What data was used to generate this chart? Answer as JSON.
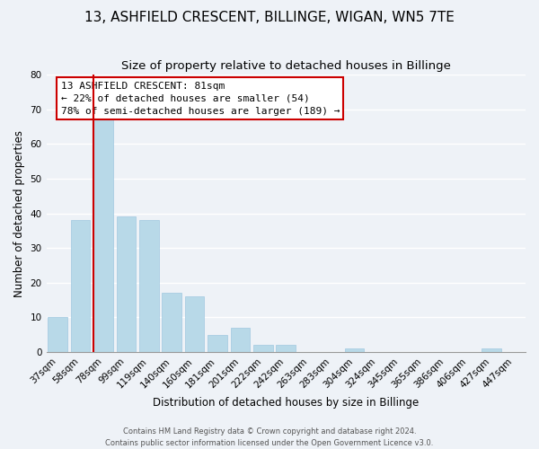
{
  "title": "13, ASHFIELD CRESCENT, BILLINGE, WIGAN, WN5 7TE",
  "subtitle": "Size of property relative to detached houses in Billinge",
  "xlabel": "Distribution of detached houses by size in Billinge",
  "ylabel": "Number of detached properties",
  "categories": [
    "37sqm",
    "58sqm",
    "78sqm",
    "99sqm",
    "119sqm",
    "140sqm",
    "160sqm",
    "181sqm",
    "201sqm",
    "222sqm",
    "242sqm",
    "263sqm",
    "283sqm",
    "304sqm",
    "324sqm",
    "345sqm",
    "365sqm",
    "386sqm",
    "406sqm",
    "427sqm",
    "447sqm"
  ],
  "values": [
    10,
    38,
    67,
    39,
    38,
    17,
    16,
    5,
    7,
    2,
    2,
    0,
    0,
    1,
    0,
    0,
    0,
    0,
    0,
    1,
    0
  ],
  "highlight_index": 2,
  "bar_color": "#b8d9e8",
  "highlight_line_color": "#cc0000",
  "ylim": [
    0,
    80
  ],
  "yticks": [
    0,
    10,
    20,
    30,
    40,
    50,
    60,
    70,
    80
  ],
  "annotation_title": "13 ASHFIELD CRESCENT: 81sqm",
  "annotation_line1": "← 22% of detached houses are smaller (54)",
  "annotation_line2": "78% of semi-detached houses are larger (189) →",
  "annotation_box_color": "#ffffff",
  "annotation_border_color": "#cc0000",
  "footer_line1": "Contains HM Land Registry data © Crown copyright and database right 2024.",
  "footer_line2": "Contains public sector information licensed under the Open Government Licence v3.0.",
  "background_color": "#eef2f7",
  "grid_color": "#ffffff",
  "title_fontsize": 11,
  "subtitle_fontsize": 9.5,
  "ylabel_fontsize": 8.5,
  "xlabel_fontsize": 8.5,
  "tick_fontsize": 7.5,
  "annotation_fontsize": 8,
  "footer_fontsize": 6
}
